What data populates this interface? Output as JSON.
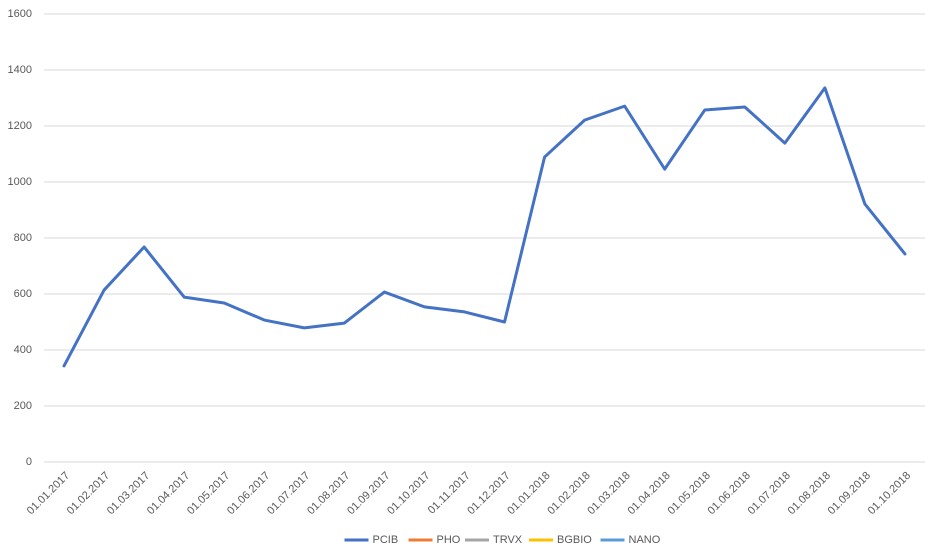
{
  "chart_data": {
    "type": "line",
    "categories": [
      "01.01.2017",
      "01.02.2017",
      "01.03.2017",
      "01.04.2017",
      "01.05.2017",
      "01.06.2017",
      "01.07.2017",
      "01.08.2017",
      "01.09.2017",
      "01.10.2017",
      "01.11.2017",
      "01.12.2017",
      "01.01.2018",
      "01.02.2018",
      "01.03.2018",
      "01.04.2018",
      "01.05.2018",
      "01.06.2018",
      "01.07.2018",
      "01.08.2018",
      "01.09.2018",
      "01.10.2018"
    ],
    "series": [
      {
        "name": "PCIB",
        "color": "#4472c4",
        "values": [
          343,
          614,
          768,
          589,
          568,
          507,
          479,
          496,
          607,
          554,
          536,
          500,
          1089,
          1221,
          1271,
          1046,
          1257,
          1268,
          1139,
          1336,
          921,
          743
        ]
      },
      {
        "name": "PHO",
        "color": "#ed7d31",
        "values": [
          null,
          null,
          null,
          null,
          null,
          null,
          null,
          null,
          null,
          null,
          null,
          null,
          null,
          null,
          null,
          null,
          null,
          null,
          null,
          null,
          null,
          null
        ]
      },
      {
        "name": "TRVX",
        "color": "#a5a5a5",
        "values": [
          null,
          null,
          null,
          null,
          null,
          null,
          null,
          null,
          null,
          null,
          null,
          null,
          null,
          null,
          null,
          null,
          null,
          null,
          null,
          null,
          null,
          null
        ]
      },
      {
        "name": "BGBIO",
        "color": "#ffc000",
        "values": [
          null,
          null,
          null,
          null,
          null,
          null,
          null,
          null,
          null,
          null,
          null,
          null,
          null,
          null,
          null,
          null,
          null,
          null,
          null,
          null,
          null,
          null
        ]
      },
      {
        "name": "NANO",
        "color": "#5b9bd5",
        "values": [
          null,
          null,
          null,
          null,
          null,
          null,
          null,
          null,
          null,
          null,
          null,
          null,
          null,
          null,
          null,
          null,
          null,
          null,
          null,
          null,
          null,
          null
        ]
      }
    ],
    "ylim": [
      0,
      1600
    ],
    "yticks": [
      0,
      200,
      400,
      600,
      800,
      1000,
      1200,
      1400,
      1600
    ],
    "grid": true,
    "legend": "bottom"
  }
}
